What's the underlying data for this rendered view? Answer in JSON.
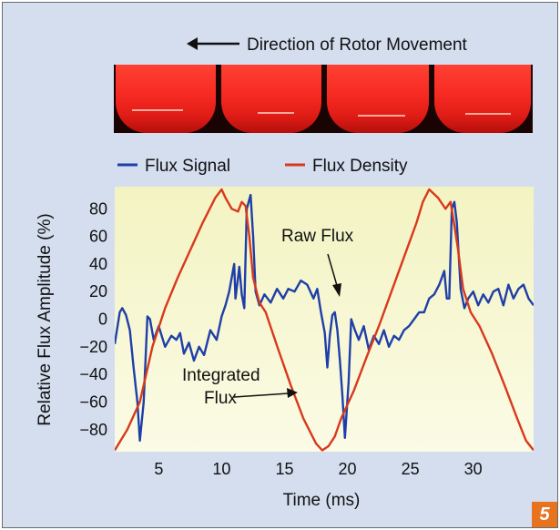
{
  "figure_number": "5",
  "rotor_caption": "Direction of Rotor Movement",
  "chart_data": {
    "type": "line",
    "title": "",
    "xlabel": "Time (ms)",
    "ylabel": "Relative Flux Amplitude (%)",
    "xlim": [
      1.5,
      34.8
    ],
    "ylim": [
      -96,
      96
    ],
    "x_ticks": [
      5,
      10,
      15,
      20,
      25,
      30
    ],
    "y_ticks": [
      80,
      60,
      40,
      20,
      0,
      -20,
      -40,
      -60,
      -80
    ],
    "x_tick_labels": [
      "5",
      "10",
      "15",
      "20",
      "25",
      "30"
    ],
    "y_tick_labels": [
      "80",
      "60",
      "40",
      "20",
      "0",
      "−20",
      "−40",
      "−60",
      "−80"
    ],
    "grid": false,
    "legend_position": "top",
    "series": [
      {
        "name": "Flux Signal",
        "color": "#1f3fa8",
        "x": [
          1.5,
          1.9,
          2.1,
          2.4,
          2.7,
          3.0,
          3.3,
          3.5,
          3.8,
          4.1,
          4.3,
          4.6,
          5.0,
          5.5,
          6.0,
          6.4,
          6.7,
          7.0,
          7.4,
          7.8,
          8.2,
          8.6,
          9.1,
          9.6,
          10.0,
          10.3,
          10.6,
          10.9,
          11.0,
          11.1,
          11.3,
          11.4,
          11.6,
          11.8,
          12.0,
          12.3,
          12.5,
          12.7,
          13.0,
          13.4,
          13.9,
          14.4,
          14.9,
          15.3,
          15.8,
          16.3,
          16.8,
          17.3,
          17.6,
          17.9,
          18.2,
          18.4,
          18.6,
          18.8,
          19.0,
          19.2,
          19.4,
          19.6,
          19.8,
          20.1,
          20.3,
          20.6,
          20.9,
          21.3,
          21.7,
          22.1,
          22.5,
          22.9,
          23.3,
          23.7,
          24.1,
          24.5,
          24.9,
          25.3,
          25.7,
          26.1,
          26.5,
          26.9,
          27.3,
          27.5,
          27.7,
          27.9,
          28.1,
          28.3,
          28.5,
          28.7,
          29.0,
          29.3,
          29.6,
          30.0,
          30.4,
          30.8,
          31.2,
          31.6,
          32.0,
          32.4,
          32.8,
          33.2,
          33.6,
          34.0,
          34.4,
          34.8
        ],
        "y": [
          -18,
          5,
          8,
          3,
          -8,
          -35,
          -60,
          -88,
          -60,
          2,
          0,
          -15,
          -5,
          -20,
          -12,
          -15,
          -10,
          -25,
          -17,
          -30,
          -20,
          -26,
          -8,
          -15,
          2,
          10,
          20,
          35,
          40,
          15,
          30,
          38,
          18,
          8,
          80,
          90,
          60,
          20,
          10,
          18,
          12,
          22,
          15,
          22,
          20,
          28,
          25,
          15,
          22,
          5,
          -10,
          -35,
          -12,
          3,
          5,
          -8,
          -30,
          -55,
          -86,
          -45,
          0,
          -8,
          -15,
          -5,
          -22,
          -12,
          -18,
          -8,
          -20,
          -12,
          -15,
          -8,
          -5,
          0,
          5,
          5,
          15,
          18,
          25,
          30,
          35,
          15,
          15,
          80,
          85,
          70,
          22,
          8,
          15,
          20,
          10,
          18,
          12,
          20,
          22,
          10,
          25,
          15,
          22,
          25,
          15,
          10
        ]
      },
      {
        "name": "Flux Density",
        "color": "#d8391c",
        "x": [
          1.5,
          2.5,
          3.5,
          4.5,
          5.5,
          6.5,
          7.5,
          8.5,
          9.5,
          10.0,
          10.3,
          10.8,
          11.3,
          11.6,
          11.9,
          12.2,
          12.5,
          13.0,
          13.5,
          14.5,
          15.5,
          16.5,
          17.5,
          18.0,
          18.5,
          19.0,
          19.5,
          20.5,
          21.5,
          22.5,
          23.5,
          24.5,
          25.5,
          26.0,
          26.5,
          27.2,
          27.8,
          28.2,
          28.5,
          28.8,
          29.2,
          29.8,
          30.5,
          31.5,
          32.5,
          33.5,
          34.2,
          34.8
        ],
        "y": [
          -95,
          -80,
          -60,
          -20,
          8,
          30,
          50,
          70,
          88,
          94,
          88,
          80,
          78,
          85,
          82,
          60,
          30,
          12,
          5,
          -22,
          -48,
          -72,
          -90,
          -95,
          -92,
          -85,
          -72,
          -52,
          -28,
          -5,
          20,
          45,
          70,
          85,
          94,
          88,
          80,
          85,
          68,
          50,
          22,
          5,
          -5,
          -25,
          -48,
          -72,
          -88,
          -95
        ]
      }
    ],
    "annotations": [
      "Raw Flux",
      "Integrated Flux"
    ]
  },
  "annotation_lines": {
    "raw": "Raw Flux",
    "integrated_line1": "Integrated",
    "integrated_line2": "Flux"
  }
}
